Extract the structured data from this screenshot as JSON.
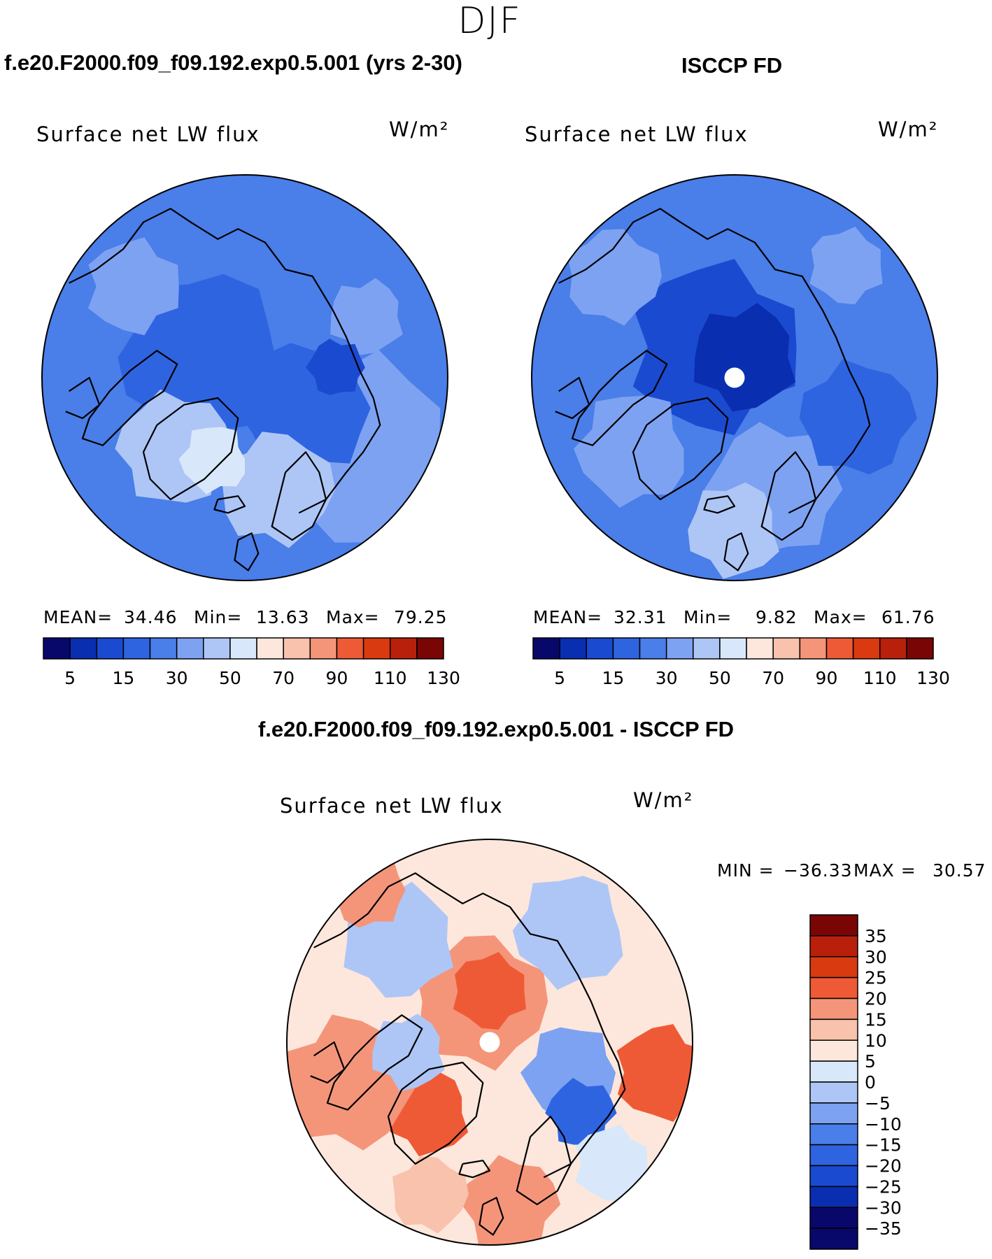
{
  "page": {
    "season": "DJF",
    "units": "W/m²"
  },
  "colors": {
    "map_levels": [
      "#08086b",
      "#0a2eb0",
      "#1a4ad0",
      "#2f64e0",
      "#4a7ee8",
      "#7ea2f2",
      "#aec6f6",
      "#d8e8fa",
      "#fde7dc",
      "#f8c2ac",
      "#f4957a",
      "#ef5a36",
      "#d93a10",
      "#b8200c",
      "#7a0505"
    ],
    "diff_levels": [
      "#08086b",
      "#0a2eb0",
      "#1a4ad0",
      "#2f64e0",
      "#4a7ee8",
      "#7ea2f2",
      "#aec6f6",
      "#d8e8fa",
      "#fde7dc",
      "#f8c2ac",
      "#f4957a",
      "#ef5a36",
      "#d93a10",
      "#b8200c",
      "#7a0505"
    ]
  },
  "chart_data": [
    {
      "type": "heatmap",
      "title": "f.e20.F2000.f09_f09.192.exp0.5.001 (yrs 2-30)",
      "variable": "Surface net LW flux",
      "units": "W/m²",
      "projection": "north polar stereographic",
      "stats": {
        "mean_label": "MEAN=",
        "mean": "34.46",
        "min_label": "Min=",
        "min": "13.63",
        "max_label": "Max=",
        "max": "79.25"
      },
      "colorbar": {
        "levels": [
          5,
          10,
          15,
          20,
          30,
          40,
          50,
          60,
          70,
          80,
          90,
          100,
          110,
          120,
          130
        ],
        "tick_labels": [
          "5",
          "15",
          "30",
          "50",
          "70",
          "90",
          "110",
          "130"
        ]
      }
    },
    {
      "type": "heatmap",
      "title": "ISCCP FD",
      "variable": "Surface net LW flux",
      "units": "W/m²",
      "projection": "north polar stereographic",
      "stats": {
        "mean_label": "MEAN=",
        "mean": "32.31",
        "min_label": "Min=",
        "min": "9.82",
        "max_label": "Max=",
        "max": "61.76"
      },
      "colorbar": {
        "levels": [
          5,
          10,
          15,
          20,
          30,
          40,
          50,
          60,
          70,
          80,
          90,
          100,
          110,
          120,
          130
        ],
        "tick_labels": [
          "5",
          "15",
          "30",
          "50",
          "70",
          "90",
          "110",
          "130"
        ]
      }
    },
    {
      "type": "heatmap",
      "title": "f.e20.F2000.f09_f09.192.exp0.5.001 - ISCCP FD",
      "variable": "Surface net LW flux",
      "units": "W/m²",
      "projection": "north polar stereographic",
      "stats": {
        "min_label": "MIN =",
        "min": "−36.33",
        "max_label": "MAX =",
        "max": "30.57"
      },
      "colorbar": {
        "levels": [
          -35,
          -30,
          -25,
          -20,
          -15,
          -10,
          -5,
          0,
          5,
          10,
          15,
          20,
          25,
          30,
          35
        ],
        "tick_labels": [
          "35",
          "30",
          "25",
          "20",
          "15",
          "10",
          "5",
          "0",
          "−5",
          "−10",
          "−15",
          "−20",
          "−25",
          "−30",
          "−35"
        ]
      }
    }
  ]
}
